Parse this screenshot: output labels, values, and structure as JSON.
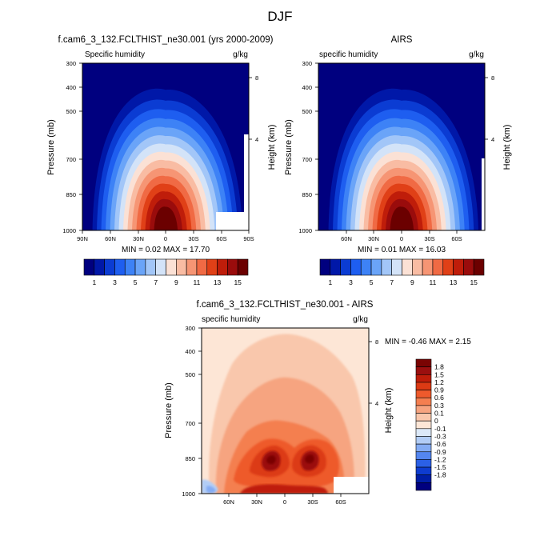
{
  "figure": {
    "title": "DJF"
  },
  "chart_data": [
    {
      "type": "heatmap",
      "title": "f.cam6_3_132.FCLTHIST_ne30.001 (yrs 2000-2009)",
      "left_string": "Specific humidity",
      "right_string": "g/kg",
      "ylabel": "Pressure (mb)",
      "ylabel_right": "Height (km)",
      "yticks": [
        "300",
        "400",
        "500",
        "700",
        "850",
        "1000"
      ],
      "yticks_right": [
        "8",
        "4"
      ],
      "xticks": [
        "90N",
        "60N",
        "30N",
        "0",
        "30S",
        "60S",
        "90S"
      ],
      "stats": "MIN =  0.02  MAX = 17.70",
      "colorbar_labels": [
        "1",
        "3",
        "5",
        "7",
        "9",
        "11",
        "13",
        "15"
      ],
      "colorbar_colors": [
        "#00007f",
        "#0018a8",
        "#0b3cd3",
        "#1e5ef0",
        "#3d82f6",
        "#6aa4f8",
        "#a2c6f8",
        "#d3e3f8",
        "#fbe1d5",
        "#f9bca3",
        "#f69574",
        "#f06a44",
        "#e04017",
        "#bf1d0a",
        "#9a0c0c",
        "#6b0000"
      ]
    },
    {
      "type": "heatmap",
      "title": "AIRS",
      "left_string": "specific humidity",
      "right_string": "g/kg",
      "ylabel": "Pressure (mb)",
      "ylabel_right": "Height (km)",
      "yticks": [
        "300",
        "400",
        "500",
        "700",
        "850",
        "1000"
      ],
      "yticks_right": [
        "8",
        "4"
      ],
      "xticks": [
        "60N",
        "30N",
        "0",
        "30S",
        "60S"
      ],
      "stats": "MIN =  0.01  MAX = 16.03",
      "colorbar_labels": [
        "1",
        "3",
        "5",
        "7",
        "9",
        "11",
        "13",
        "15"
      ],
      "colorbar_colors": [
        "#00007f",
        "#0018a8",
        "#0b3cd3",
        "#1e5ef0",
        "#3d82f6",
        "#6aa4f8",
        "#a2c6f8",
        "#d3e3f8",
        "#fbe1d5",
        "#f9bca3",
        "#f69574",
        "#f06a44",
        "#e04017",
        "#bf1d0a",
        "#9a0c0c",
        "#6b0000"
      ]
    },
    {
      "type": "heatmap",
      "title": "f.cam6_3_132.FCLTHIST_ne30.001 - AIRS",
      "left_string": "specific humidity",
      "right_string": "g/kg",
      "ylabel": "Pressure (mb)",
      "ylabel_right": "Height (km)",
      "yticks": [
        "300",
        "400",
        "500",
        "700",
        "850",
        "1000"
      ],
      "yticks_right": [
        "8",
        "4"
      ],
      "xticks": [
        "60N",
        "30N",
        "0",
        "30S",
        "60S"
      ],
      "stats": "MIN = -0.46  MAX =  2.15",
      "colorbar_labels": [
        "1.8",
        "1.5",
        "1.2",
        "0.9",
        "0.6",
        "0.3",
        "0.1",
        "0",
        "-0.1",
        "-0.3",
        "-0.6",
        "-0.9",
        "-1.2",
        "-1.5",
        "-1.8"
      ],
      "colorbar_colors": [
        "#7a0403",
        "#9b0f0f",
        "#bf1d0a",
        "#dc3a14",
        "#ee5a2c",
        "#f47f50",
        "#f6a480",
        "#f9c7ac",
        "#fde6d6",
        "#dce9f8",
        "#b2cdf6",
        "#84acf4",
        "#5486f0",
        "#2b60e6",
        "#0e3cd0",
        "#001ea6",
        "#00007f"
      ]
    }
  ]
}
